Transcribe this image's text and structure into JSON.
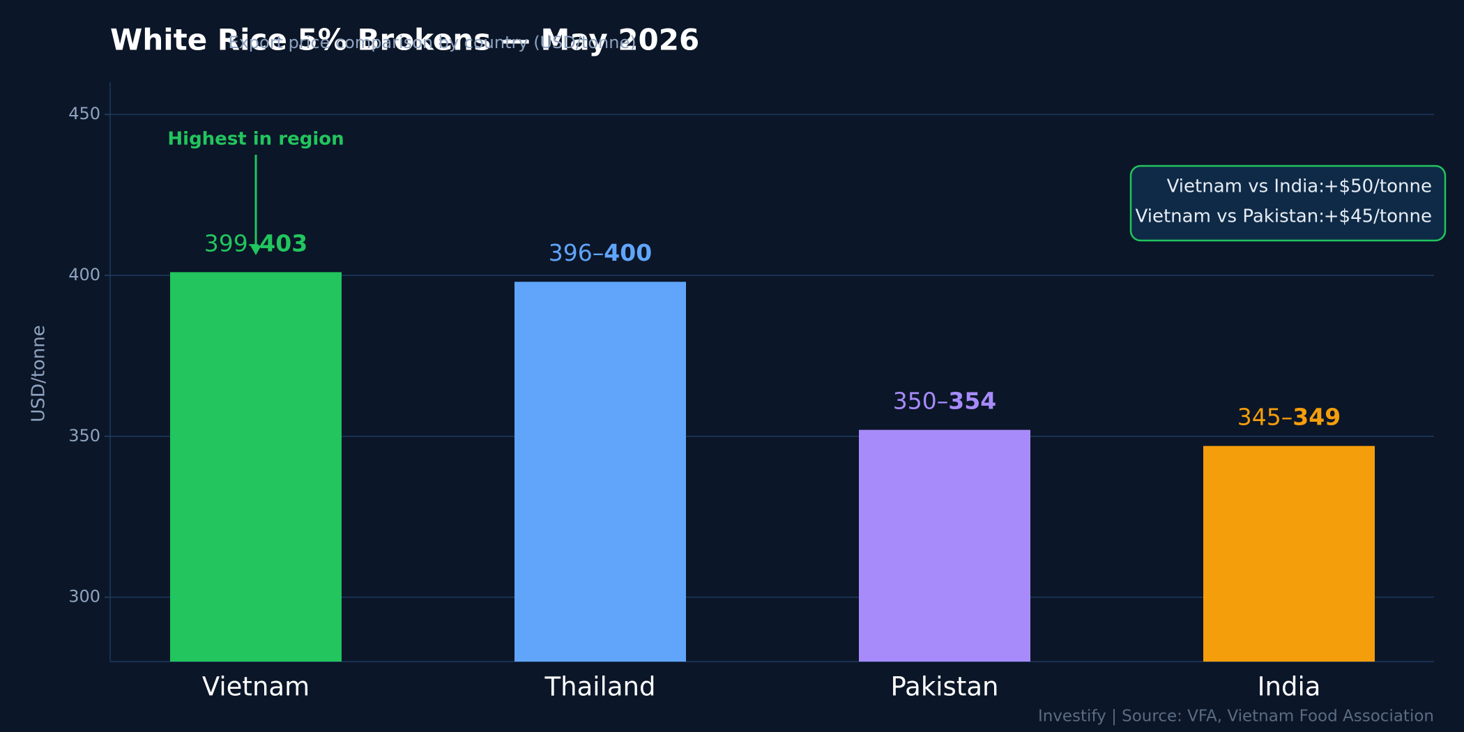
{
  "chart_data": {
    "type": "bar",
    "title": "White Rice 5% Brokens — May 2026",
    "subtitle": "Export price comparison by country (USD/tonne)",
    "y_label": "USD/tonne",
    "categories": [
      "Vietnam",
      "Thailand",
      "Pakistan",
      "India"
    ],
    "values": [
      401,
      398,
      352,
      347
    ],
    "low": [
      399,
      396,
      350,
      345
    ],
    "high": [
      403,
      400,
      354,
      349
    ],
    "range_separator": "–",
    "colors": [
      "#22c55e",
      "#60a5fa",
      "#a78bfa",
      "#f59e0b"
    ],
    "ylim": [
      280,
      460
    ],
    "yticks": [
      300,
      350,
      400,
      450
    ],
    "grid": true,
    "annotation": "Highest in region",
    "comparisons": [
      {
        "label": "Vietnam vs India:",
        "value": "+$50/tonne"
      },
      {
        "label": "Vietnam vs Pakistan:",
        "value": "+$45/tonne"
      }
    ],
    "footer": "Investify  |  Source: VFA, Vietnam Food Association"
  }
}
